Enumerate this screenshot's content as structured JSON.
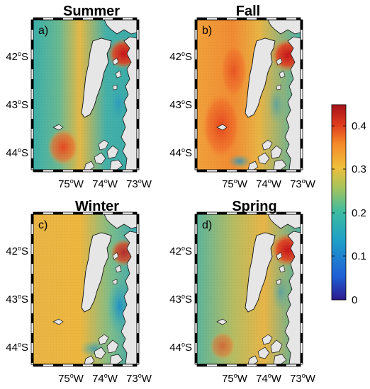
{
  "panels": [
    {
      "id": "summer",
      "title": "Summer",
      "label": "a)"
    },
    {
      "id": "fall",
      "title": "Fall",
      "label": "b)"
    },
    {
      "id": "winter",
      "title": "Winter",
      "label": "c)"
    },
    {
      "id": "spring",
      "title": "Spring",
      "label": "d)"
    }
  ],
  "lat_ticks": [
    {
      "deg": "42",
      "hemi": "S"
    },
    {
      "deg": "43",
      "hemi": "S"
    },
    {
      "deg": "44",
      "hemi": "S"
    }
  ],
  "lon_ticks": [
    {
      "deg": "75",
      "hemi": "W"
    },
    {
      "deg": "74",
      "hemi": "W"
    },
    {
      "deg": "73",
      "hemi": "W"
    }
  ],
  "colorbar": {
    "min": 0,
    "max": 0.45,
    "ticks": [
      "0.4",
      "0.3",
      "0.2",
      "0.1",
      "0"
    ],
    "colors": [
      "#2b1a8c",
      "#1f5fd6",
      "#1e9ec8",
      "#3cbca0",
      "#a9c45a",
      "#f0be3a",
      "#f58a2a",
      "#de3a1c",
      "#a4121a"
    ]
  }
}
